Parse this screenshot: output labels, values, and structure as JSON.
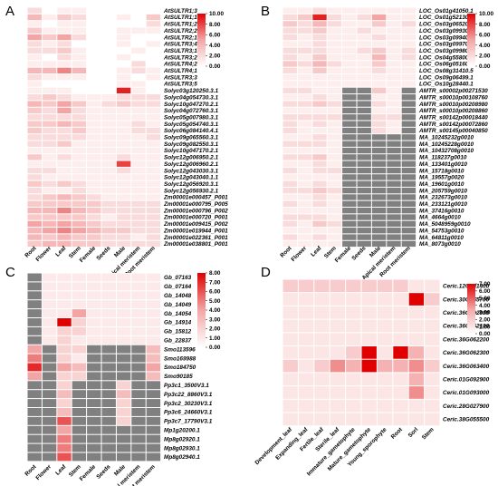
{
  "colors": {
    "low": "#ffffff",
    "mid": "#f3a5a5",
    "high": "#e00000",
    "missing": "#808080",
    "grid": "#ffffff"
  },
  "chart_data": [
    {
      "type": "heatmap",
      "panel": "A",
      "title": "",
      "columns": [
        "Root",
        "Flower",
        "Leaf",
        "Stem",
        "Female",
        "Seeds",
        "Male",
        "Apical meristem",
        "Root meristem"
      ],
      "rows": [
        "AtSULTR1;3",
        "AtSULTR1;1",
        "AtSULTR1;2",
        "AtSULTR2;2",
        "AtSULTR2;1",
        "AtSULTR3;4",
        "AtSULTR3;1",
        "AtSULTR3;2",
        "AtSULTR4;2",
        "AtSULTR4;1",
        "AtSULTR3;3",
        "AtSULTR3;5",
        "Solyc03g120250.3.1",
        "Solyc04g054730.3.1",
        "Solyc10g047270.2.1",
        "Solyc04g072760.3.1",
        "Solyc05g007980.3.1",
        "Solyc05g054740.3.1",
        "Solyc06g084140.4.1",
        "Solyc09g065560.3.1",
        "Solyc09g082550.3.1",
        "Solyc10g047170.2.1",
        "Solyc12g006950.2.1",
        "Solyc12g006960.2.1",
        "Solyc12g043030.3.1",
        "Solyc12g043040.1.1",
        "Solyc12g056920.3.1",
        "Solyc12g056930.2.1",
        "Zm00001e000457_P001",
        "Zm00001e000795_P005",
        "Zm00001e000796_P002",
        "Zm00001e000720_P001",
        "Zm00001e009415_P002",
        "Zm00001e019944_P001",
        "Zm00001e022361_P001",
        "Zm00001e038801_P001"
      ],
      "values": [
        [
          2,
          0,
          1,
          1,
          0,
          0,
          0,
          0,
          0
        ],
        [
          4,
          1,
          3,
          2,
          0,
          0,
          1,
          0,
          3
        ],
        [
          1,
          0,
          1,
          1,
          0,
          0,
          0,
          0,
          2
        ],
        [
          3,
          1,
          1,
          1,
          0,
          0,
          1,
          1,
          1
        ],
        [
          5,
          3,
          5,
          2,
          0,
          0,
          1,
          0,
          0
        ],
        [
          2,
          1,
          2,
          0,
          0,
          0,
          1,
          0,
          1
        ],
        [
          2,
          2,
          3,
          1,
          0,
          0,
          0,
          1,
          0
        ],
        [
          1,
          0,
          2,
          1,
          0,
          0,
          1,
          0,
          0
        ],
        [
          1,
          1,
          1,
          1,
          0,
          0,
          0,
          2,
          0
        ],
        [
          4,
          4,
          6,
          4,
          0,
          0,
          1,
          2,
          1
        ],
        [
          2,
          1,
          1,
          1,
          0,
          0,
          1,
          0,
          1
        ],
        [
          1,
          0,
          0,
          0,
          0,
          0,
          1,
          1,
          0
        ],
        [
          1,
          1,
          1,
          0,
          0,
          0,
          9,
          1,
          0
        ],
        [
          2,
          3,
          2,
          1,
          1,
          1,
          2,
          2,
          2
        ],
        [
          4,
          3,
          5,
          3,
          1,
          2,
          3,
          2,
          2
        ],
        [
          3,
          2,
          5,
          2,
          1,
          1,
          1,
          1,
          1
        ],
        [
          2,
          2,
          2,
          2,
          1,
          1,
          1,
          1,
          1
        ],
        [
          3,
          3,
          4,
          3,
          1,
          1,
          1,
          2,
          1
        ],
        [
          3,
          2,
          2,
          3,
          1,
          1,
          1,
          2,
          2
        ],
        [
          2,
          2,
          2,
          2,
          1,
          1,
          1,
          1,
          2
        ],
        [
          2,
          2,
          3,
          1,
          1,
          1,
          1,
          1,
          1
        ],
        [
          1,
          1,
          1,
          1,
          1,
          1,
          1,
          1,
          1
        ],
        [
          3,
          1,
          2,
          1,
          1,
          1,
          2,
          1,
          1
        ],
        [
          1,
          1,
          1,
          1,
          1,
          1,
          8,
          1,
          1
        ],
        [
          2,
          2,
          1,
          1,
          1,
          1,
          2,
          1,
          1
        ],
        [
          2,
          1,
          1,
          1,
          1,
          1,
          1,
          1,
          1
        ],
        [
          3,
          2,
          3,
          2,
          1,
          1,
          1,
          1,
          1
        ],
        [
          2,
          1,
          1,
          2,
          1,
          1,
          1,
          1,
          1
        ],
        [
          2,
          3,
          4,
          3,
          2,
          1,
          1,
          1,
          1
        ],
        [
          3,
          3,
          3,
          3,
          3,
          2,
          2,
          2,
          2
        ],
        [
          4,
          4,
          6,
          4,
          3,
          2,
          2,
          2,
          2
        ],
        [
          3,
          3,
          3,
          3,
          2,
          1,
          2,
          2,
          2
        ],
        [
          5,
          4,
          5,
          4,
          3,
          2,
          2,
          2,
          2
        ],
        [
          4,
          5,
          6,
          5,
          4,
          3,
          3,
          2,
          2
        ],
        [
          4,
          3,
          4,
          3,
          3,
          2,
          2,
          1,
          2
        ],
        [
          3,
          4,
          4,
          3,
          3,
          2,
          2,
          2,
          2
        ]
      ],
      "scale_ticks": [
        "10.00",
        "8.00",
        "6.00",
        "4.00",
        "2.00",
        "0.00"
      ],
      "vmax": 10
    },
    {
      "type": "heatmap",
      "panel": "B",
      "title": "",
      "columns": [
        "Root",
        "Flower",
        "Leaf",
        "Stem",
        "Female",
        "Seeds",
        "Male",
        "Apical meristem",
        "Root meristem"
      ],
      "rows": [
        "LOC_Os01g41050.1",
        "LOC_Os01g52130.1",
        "LOC_Os03g06520.1",
        "LOC_Os03g09930.1",
        "LOC_Os03g09940.1",
        "LOC_Os03g09970.4",
        "LOC_Os03g09980.1",
        "LOC_Os04g55800.1",
        "LOC_Os06g05160.1",
        "LOC_Os08g31410.5",
        "LOC_Os09g06499.1",
        "LOC_Os10g28440.1",
        "AMTR_s00002p00271530",
        "AMTR_s00010p00108760",
        "AMTR_s00010p00208980",
        "AMTR_s00010p00208860",
        "AMTR_s00142p00018440",
        "AMTR_s00142p00072860",
        "AMTR_s00145p00040850",
        "MA_10245232g0010",
        "MA_10245228g0010",
        "MA_10432708g0010",
        "MA_118237g0010",
        "MA_133401g0010",
        "MA_15718g0010",
        "MA_19557g0020",
        "MA_19601g0010",
        "MA_205759g0010",
        "MA_232673g0010",
        "MA_233121g0010",
        "MA_37416g0010",
        "MA_4664g0010",
        "MA_5048959g0010",
        "MA_54753g0010",
        "MA_64811g0010",
        "MA_8073g0010"
      ],
      "values": [
        [
          1,
          1,
          2,
          1,
          1,
          1,
          1,
          1,
          1
        ],
        [
          2,
          3,
          9,
          2,
          1,
          2,
          5,
          1,
          1
        ],
        [
          3,
          2,
          4,
          2,
          1,
          1,
          3,
          1,
          2
        ],
        [
          2,
          2,
          3,
          1,
          1,
          2,
          1,
          1,
          1
        ],
        [
          2,
          1,
          2,
          1,
          1,
          1,
          2,
          1,
          1
        ],
        [
          1,
          1,
          2,
          1,
          1,
          1,
          1,
          1,
          1
        ],
        [
          2,
          2,
          2,
          1,
          1,
          2,
          3,
          1,
          2
        ],
        [
          2,
          1,
          3,
          1,
          1,
          1,
          4,
          1,
          2
        ],
        [
          3,
          2,
          4,
          2,
          1,
          1,
          3,
          1,
          1
        ],
        [
          2,
          1,
          3,
          1,
          1,
          1,
          2,
          1,
          1
        ],
        [
          1,
          1,
          1,
          1,
          1,
          1,
          1,
          1,
          1
        ],
        [
          1,
          1,
          1,
          1,
          1,
          1,
          1,
          1,
          1
        ],
        [
          2,
          2,
          1,
          1,
          null,
          null,
          3,
          1,
          null
        ],
        [
          1,
          1,
          2,
          1,
          null,
          null,
          1,
          1,
          null
        ],
        [
          2,
          2,
          3,
          2,
          null,
          null,
          2,
          1,
          null
        ],
        [
          1,
          1,
          1,
          1,
          null,
          null,
          1,
          1,
          null
        ],
        [
          2,
          2,
          2,
          2,
          null,
          null,
          2,
          2,
          null
        ],
        [
          2,
          1,
          2,
          1,
          null,
          null,
          2,
          1,
          null
        ],
        [
          2,
          1,
          1,
          1,
          null,
          null,
          2,
          1,
          null
        ],
        [
          1,
          1,
          2,
          1,
          null,
          null,
          null,
          null,
          null
        ],
        [
          2,
          2,
          2,
          1,
          null,
          null,
          null,
          null,
          null
        ],
        [
          1,
          1,
          1,
          1,
          null,
          null,
          null,
          null,
          null
        ],
        [
          2,
          2,
          3,
          1,
          null,
          null,
          null,
          null,
          null
        ],
        [
          1,
          1,
          2,
          1,
          null,
          null,
          null,
          null,
          null
        ],
        [
          2,
          1,
          2,
          2,
          null,
          null,
          null,
          null,
          null
        ],
        [
          1,
          1,
          1,
          1,
          null,
          null,
          null,
          null,
          null
        ],
        [
          2,
          1,
          2,
          1,
          null,
          null,
          null,
          null,
          null
        ],
        [
          2,
          2,
          3,
          2,
          null,
          null,
          null,
          null,
          null
        ],
        [
          1,
          1,
          2,
          1,
          null,
          null,
          null,
          null,
          null
        ],
        [
          2,
          1,
          2,
          1,
          null,
          null,
          null,
          null,
          null
        ],
        [
          1,
          1,
          1,
          1,
          null,
          null,
          null,
          null,
          null
        ],
        [
          2,
          2,
          2,
          1,
          null,
          null,
          null,
          null,
          null
        ],
        [
          2,
          1,
          3,
          2,
          null,
          null,
          null,
          null,
          null
        ],
        [
          1,
          1,
          1,
          1,
          null,
          null,
          null,
          null,
          null
        ],
        [
          2,
          1,
          2,
          1,
          null,
          null,
          null,
          null,
          null
        ],
        [
          1,
          1,
          1,
          1,
          null,
          null,
          null,
          null,
          null
        ]
      ],
      "scale_ticks": [
        "10.00",
        "8.00",
        "6.00",
        "4.00",
        "2.00",
        "0.00"
      ],
      "vmax": 10
    },
    {
      "type": "heatmap",
      "panel": "C",
      "title": "",
      "columns": [
        "Root",
        "Flower",
        "Leaf",
        "Stem",
        "Female",
        "Seeds",
        "Male",
        "Apical meristem",
        "Root meristem"
      ],
      "rows": [
        "Gb_07163",
        "Gb_07164",
        "Gb_14048",
        "Gb_14049",
        "Gb_14054",
        "Gb_14914",
        "Gb_15812",
        "Gb_22837",
        "Smo113596",
        "Smo169988",
        "Smo184750",
        "Smo90185",
        "Pp3c1_3500V3.1",
        "Pp3c22_8860V3.1",
        "Pp3c2_30230V3.1",
        "Pp3c6_24660V3.1",
        "Pp3c7_17790V3.1",
        "Mp1g20200.1",
        "Mp8g02920.1",
        "Mp8g02930.1",
        "Mp8g02940.1"
      ],
      "values": [
        [
          null,
          1,
          1,
          1,
          1,
          1,
          1,
          1,
          1
        ],
        [
          null,
          1,
          1,
          1,
          1,
          1,
          1,
          1,
          1
        ],
        [
          null,
          1,
          1,
          1,
          1,
          1,
          1,
          1,
          1
        ],
        [
          null,
          1,
          1,
          1,
          1,
          1,
          1,
          1,
          1
        ],
        [
          null,
          1,
          1,
          4,
          1,
          1,
          1,
          1,
          1
        ],
        [
          null,
          1,
          8,
          2,
          1,
          1,
          1,
          1,
          1
        ],
        [
          null,
          1,
          2,
          2,
          1,
          1,
          1,
          1,
          1
        ],
        [
          null,
          1,
          2,
          1,
          1,
          1,
          1,
          1,
          1
        ],
        [
          4,
          null,
          2,
          2,
          null,
          null,
          null,
          null,
          3
        ],
        [
          5,
          null,
          2,
          1,
          null,
          null,
          null,
          null,
          3
        ],
        [
          7,
          null,
          4,
          3,
          null,
          null,
          null,
          null,
          4
        ],
        [
          4,
          null,
          2,
          2,
          null,
          null,
          null,
          null,
          3
        ],
        [
          null,
          null,
          2,
          null,
          null,
          null,
          2,
          null,
          null
        ],
        [
          null,
          null,
          3,
          null,
          null,
          null,
          3,
          null,
          null
        ],
        [
          null,
          null,
          2,
          null,
          null,
          null,
          2,
          null,
          null
        ],
        [
          null,
          null,
          3,
          null,
          null,
          null,
          2,
          null,
          null
        ],
        [
          null,
          null,
          6,
          null,
          null,
          null,
          2,
          null,
          null
        ],
        [
          null,
          null,
          4,
          null,
          null,
          null,
          null,
          null,
          null
        ],
        [
          null,
          null,
          5,
          null,
          null,
          null,
          null,
          null,
          null
        ],
        [
          null,
          null,
          5,
          null,
          null,
          null,
          null,
          null,
          null
        ],
        [
          null,
          null,
          6,
          null,
          null,
          null,
          null,
          null,
          null
        ]
      ],
      "scale_ticks": [
        "8.00",
        "7.00",
        "6.00",
        "5.00",
        "4.00",
        "3.00",
        "2.00",
        "1.00",
        "0.00"
      ],
      "vmax": 8
    },
    {
      "type": "heatmap",
      "panel": "D",
      "title": "",
      "columns": [
        "Development_leaf",
        "Expanding_leaf",
        "Fertile_leaf",
        "Sterile_leaf",
        "Immature_gametophyte",
        "Mature_gametophyte",
        "Young_sporophyte",
        "Root",
        "Sorl",
        "Stem"
      ],
      "rows": [
        "Ceric.12G081400",
        "Ceric.30G065700",
        "Ceric.36G062000",
        "Ceric.36G062100",
        "Ceric.36G062200",
        "Ceric.36G062300",
        "Ceric.36G063400",
        "Ceric.01G092900",
        "Ceric.01G093000",
        "Ceric.28G027900",
        "Ceric.38G055500"
      ],
      "values": [
        [
          2,
          2,
          2,
          2,
          2,
          2,
          2,
          2,
          1,
          1
        ],
        [
          1,
          1,
          1,
          1,
          1,
          1,
          1,
          1,
          7,
          2
        ],
        [
          1,
          1,
          1,
          1,
          1,
          1,
          1,
          1,
          1,
          1
        ],
        [
          1,
          1,
          1,
          1,
          1,
          1,
          1,
          1,
          1,
          1
        ],
        [
          1,
          1,
          1,
          1,
          1,
          1,
          1,
          1,
          1,
          1
        ],
        [
          1,
          1,
          1,
          1,
          2,
          7,
          1,
          7,
          3,
          1
        ],
        [
          2,
          1,
          2,
          4,
          3,
          7,
          3,
          3,
          4,
          2
        ],
        [
          1,
          1,
          1,
          1,
          1,
          1,
          1,
          1,
          3,
          1
        ],
        [
          1,
          1,
          1,
          1,
          1,
          1,
          1,
          1,
          4,
          1
        ],
        [
          1,
          1,
          1,
          1,
          1,
          1,
          1,
          1,
          1,
          1
        ],
        [
          1,
          1,
          1,
          1,
          1,
          1,
          1,
          1,
          1,
          1
        ]
      ],
      "scale_ticks": [
        "7.00",
        "6.00",
        "5.00",
        "4.00",
        "3.00",
        "2.00",
        "1.00",
        "0.00"
      ],
      "vmax": 7
    }
  ]
}
